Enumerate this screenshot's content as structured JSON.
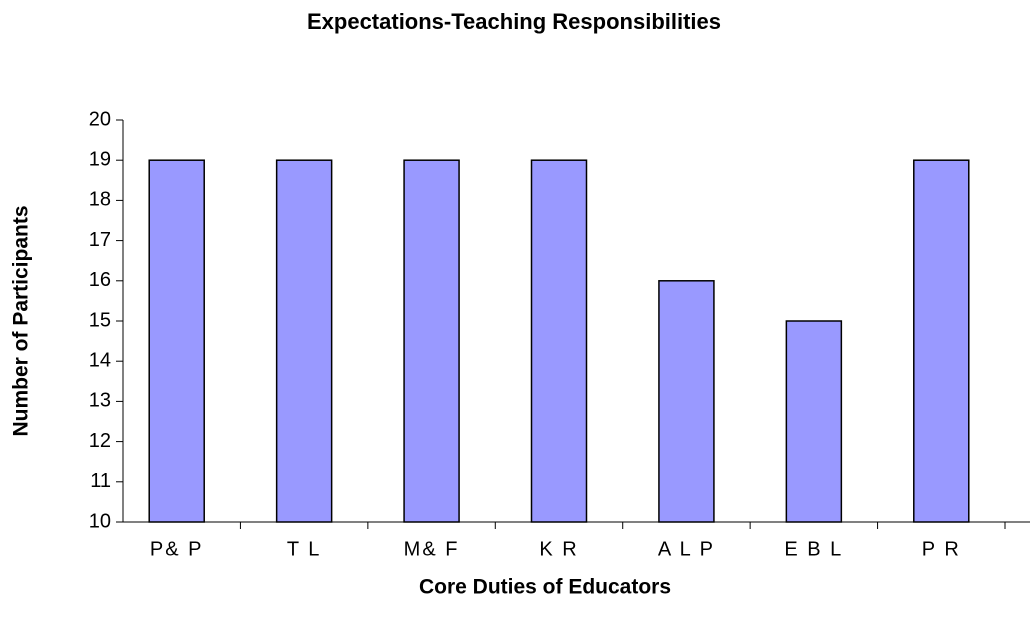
{
  "chart_data": {
    "type": "bar",
    "title": "Expectations-Teaching Responsibilities",
    "x_label": "Core Duties of Educators",
    "y_label": "Number of Participants",
    "categories": [
      "P& P",
      "T L",
      "M& F",
      "K R",
      "A L P",
      "E B L",
      "P R"
    ],
    "values": [
      19,
      19,
      19,
      19,
      16,
      15,
      19
    ],
    "color": "#9999ff",
    "ylim": [
      10,
      20
    ],
    "yticks": [
      10,
      11,
      12,
      13,
      14,
      15,
      16,
      17,
      18,
      19,
      20
    ],
    "grid": false
  }
}
